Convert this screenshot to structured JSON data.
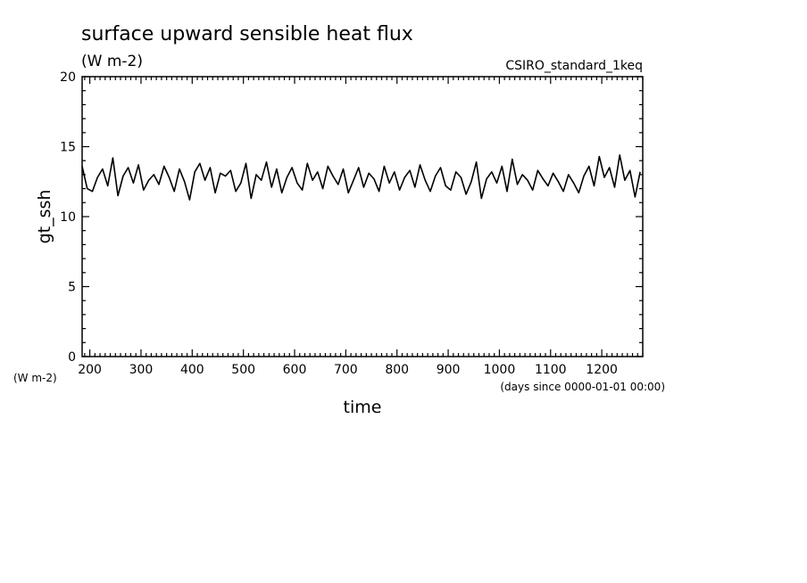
{
  "chart_data": {
    "type": "line",
    "title": "surface upward sensible heat flux",
    "subtitle": "(W m-2)",
    "run_label": "CSIRO_standard_1keq",
    "ylabel": "gt_ssh",
    "yunit_label": "(W m-2)",
    "xlabel": "time",
    "xunit_label": "(days since 0000-01-01 00:00)",
    "xlim": [
      185,
      1280
    ],
    "ylim": [
      0,
      20
    ],
    "xticks": [
      200,
      300,
      400,
      500,
      600,
      700,
      800,
      900,
      1000,
      1100,
      1200
    ],
    "xtick_labels": [
      "200",
      "300",
      "400",
      "500",
      "600",
      "700",
      "800",
      "900",
      "1000",
      "1100",
      "1200"
    ],
    "yticks": [
      0,
      5,
      10,
      15,
      20
    ],
    "ytick_labels": [
      "0",
      "5",
      "10",
      "15",
      "20"
    ],
    "grid": false,
    "line_color": "#000000",
    "series": [
      {
        "x": [
          185,
          195,
          205,
          215,
          225,
          235,
          245,
          255,
          265,
          275,
          285,
          295,
          305,
          315,
          325,
          335,
          345,
          355,
          365,
          375,
          385,
          395,
          405,
          415,
          425,
          435,
          445,
          455,
          465,
          475,
          485,
          495,
          505,
          515,
          525,
          535,
          545,
          555,
          565,
          575,
          585,
          595,
          605,
          615,
          625,
          635,
          645,
          655,
          665,
          675,
          685,
          695,
          705,
          715,
          725,
          735,
          745,
          755,
          765,
          775,
          785,
          795,
          805,
          815,
          825,
          835,
          845,
          855,
          865,
          875,
          885,
          895,
          905,
          915,
          925,
          935,
          945,
          955,
          965,
          975,
          985,
          995,
          1005,
          1015,
          1025,
          1035,
          1045,
          1055,
          1065,
          1075,
          1085,
          1095,
          1105,
          1115,
          1125,
          1135,
          1145,
          1155,
          1165,
          1175,
          1185,
          1195,
          1205,
          1215,
          1225,
          1235,
          1245,
          1255,
          1265,
          1275
        ],
        "values": [
          13.6,
          12.0,
          11.8,
          12.8,
          13.4,
          12.2,
          14.2,
          11.5,
          12.9,
          13.5,
          12.4,
          13.7,
          11.9,
          12.6,
          13.0,
          12.3,
          13.6,
          12.8,
          11.8,
          13.4,
          12.5,
          11.2,
          13.2,
          13.8,
          12.6,
          13.5,
          11.7,
          13.1,
          12.9,
          13.3,
          11.8,
          12.4,
          13.8,
          11.3,
          13.0,
          12.6,
          13.9,
          12.1,
          13.4,
          11.7,
          12.8,
          13.5,
          12.4,
          11.9,
          13.8,
          12.6,
          13.2,
          12.0,
          13.6,
          12.9,
          12.3,
          13.4,
          11.7,
          12.6,
          13.5,
          12.1,
          13.1,
          12.7,
          11.8,
          13.6,
          12.4,
          13.2,
          11.9,
          12.8,
          13.3,
          12.1,
          13.7,
          12.6,
          11.8,
          12.9,
          13.5,
          12.2,
          11.9,
          13.2,
          12.8,
          11.6,
          12.5,
          13.9,
          11.3,
          12.7,
          13.2,
          12.4,
          13.6,
          11.8,
          14.1,
          12.3,
          13.0,
          12.6,
          11.9,
          13.3,
          12.7,
          12.2,
          13.1,
          12.5,
          11.8,
          13.0,
          12.4,
          11.7,
          12.9,
          13.6,
          12.2,
          14.3,
          12.8,
          13.5,
          12.1,
          14.4,
          12.6,
          13.3,
          11.4,
          13.2
        ]
      }
    ]
  }
}
